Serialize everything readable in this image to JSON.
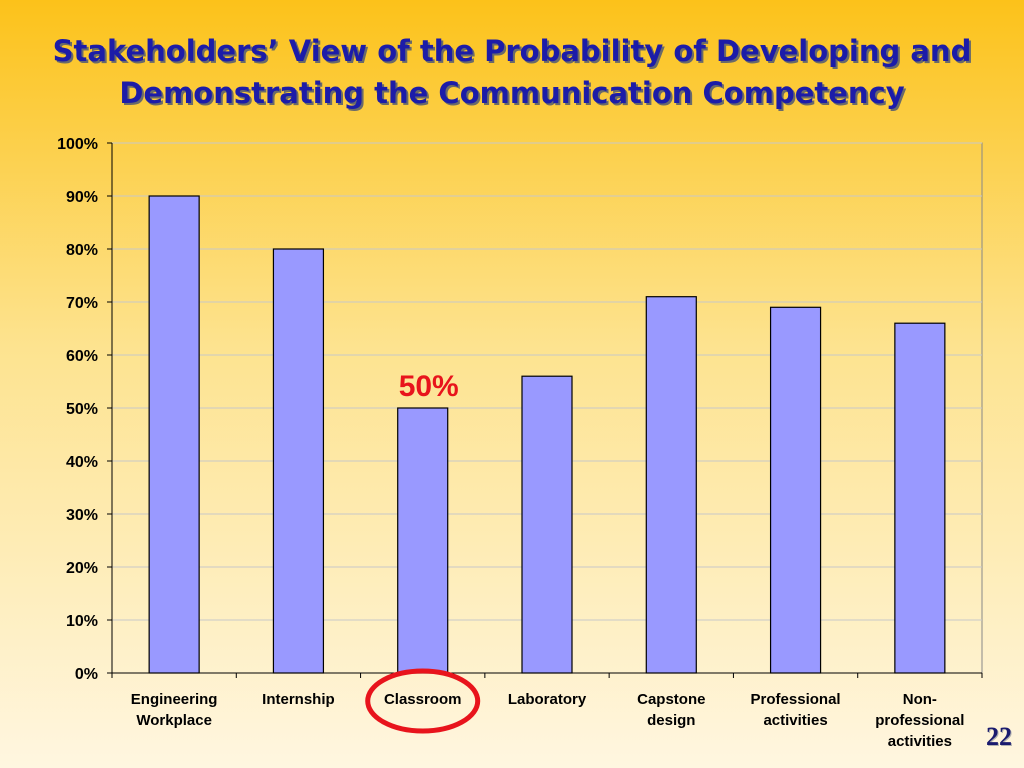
{
  "slide": {
    "title_line1": "Stakeholders’ View of the Probability of Developing and",
    "title_line2": "Demonstrating the Communication Competency",
    "page_number": "22"
  },
  "chart_data": {
    "type": "bar",
    "categories": [
      [
        "Engineering",
        "Workplace"
      ],
      [
        "Internship"
      ],
      [
        "Classroom"
      ],
      [
        "Laboratory"
      ],
      [
        "Capstone",
        "design"
      ],
      [
        "Professional",
        "activities"
      ],
      [
        "Non-",
        "professional",
        "activities"
      ]
    ],
    "values": [
      90,
      80,
      50,
      56,
      71,
      69,
      66
    ],
    "ylim": [
      0,
      100
    ],
    "yticks": [
      "0%",
      "10%",
      "20%",
      "30%",
      "40%",
      "50%",
      "60%",
      "70%",
      "80%",
      "90%",
      "100%"
    ],
    "grid": true,
    "annotation": {
      "text": "50%",
      "category_index": 2,
      "color": "#e8141c"
    },
    "highlight_category_index": 2,
    "colors": {
      "bar": "#9999ff",
      "bar_stroke": "#000000",
      "grid": "#c8c8c8",
      "highlight": "#e8141c"
    }
  }
}
